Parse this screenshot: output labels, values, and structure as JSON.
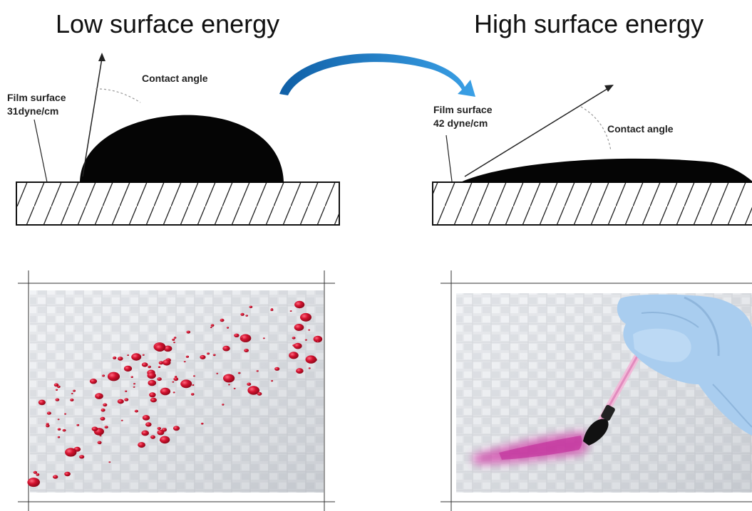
{
  "left_panel": {
    "title": "Low surface energy",
    "film_label_line1": "Film surface",
    "film_label_line2": "31dyne/cm",
    "contact_angle_label": "Contact angle"
  },
  "right_panel": {
    "title": "High surface energy",
    "film_label_line1": "Film surface",
    "film_label_line2": "42 dyne/cm",
    "contact_angle_label": "Contact angle"
  },
  "colors": {
    "arrow": "#1f7fc4",
    "ink_red": "#c8102e",
    "ink_pink": "#d040a8",
    "glove": "#a9cdef",
    "fabric": "#e4e6ea"
  }
}
